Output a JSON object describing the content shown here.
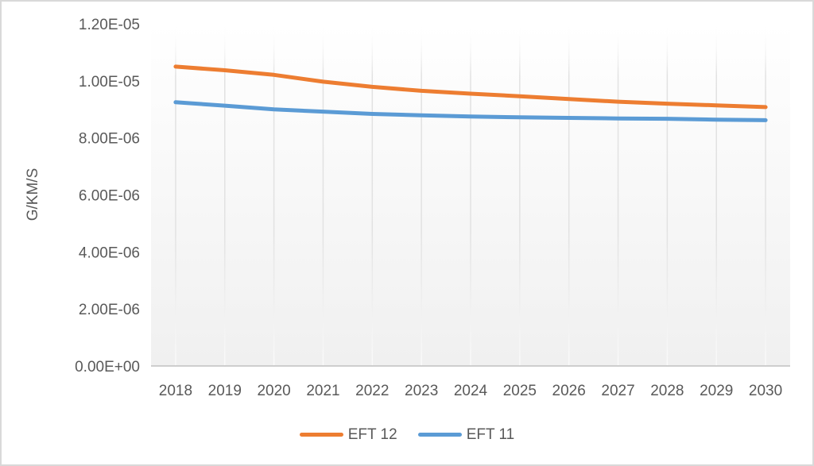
{
  "window": {
    "background": "#FFFFFF",
    "border_color": "#D9D9D9"
  },
  "chart_data": {
    "type": "line",
    "title": "",
    "xlabel": "",
    "ylabel": "G/KM/S",
    "categories": [
      "2018",
      "2019",
      "2020",
      "2021",
      "2022",
      "2023",
      "2024",
      "2025",
      "2026",
      "2027",
      "2028",
      "2029",
      "2030"
    ],
    "series": [
      {
        "name": "EFT 12",
        "color": "#ED7D31",
        "values": [
          1.05e-05,
          1.037e-05,
          1.021e-05,
          9.97e-06,
          9.79e-06,
          9.65e-06,
          9.55e-06,
          9.46e-06,
          9.36e-06,
          9.27e-06,
          9.2e-06,
          9.14e-06,
          9.08e-06
        ]
      },
      {
        "name": "EFT 11",
        "color": "#5B9BD5",
        "values": [
          9.25e-06,
          9.13e-06,
          9e-06,
          8.92e-06,
          8.84e-06,
          8.79e-06,
          8.75e-06,
          8.72e-06,
          8.7e-06,
          8.68e-06,
          8.67e-06,
          8.64e-06,
          8.62e-06
        ]
      }
    ],
    "y_axis": {
      "min": 0,
      "max": 1.2e-05,
      "tick_interval": 2e-06,
      "tick_labels": [
        "0.00E+00",
        "2.00E-06",
        "4.00E-06",
        "6.00E-06",
        "8.00E-06",
        "1.00E-05",
        "1.20E-05"
      ]
    },
    "grid": "vertical-only",
    "legend_position": "bottom",
    "styles": {
      "text_color": "#595959",
      "axis_line_color": "#BFBFBF",
      "gridline_color": "#E2E2E2",
      "gridline_bottom_color": "#FAFAFA",
      "plot_fill_top": "#FFFFFF",
      "plot_fill_bottom": "#F0F0F0"
    }
  }
}
